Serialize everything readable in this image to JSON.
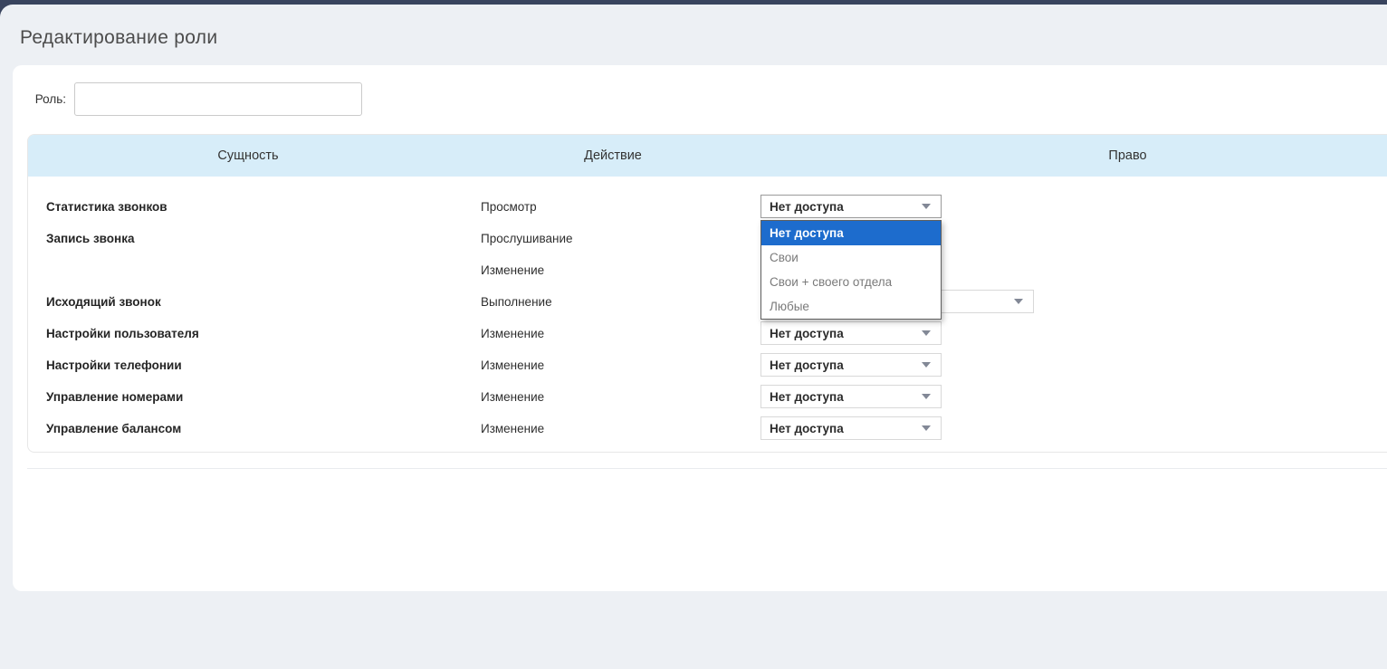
{
  "page": {
    "title": "Редактирование роли"
  },
  "form": {
    "role_label": "Роль:",
    "role_value": ""
  },
  "table": {
    "headers": [
      "Сущность",
      "Действие",
      "Право"
    ],
    "rows": [
      {
        "entity": "Статистика звонков",
        "action": "Просмотр",
        "right": "Нет доступа",
        "open": true,
        "wide": false
      },
      {
        "entity": "Запись звонка",
        "action": "Прослушивание",
        "right": null,
        "open": false,
        "wide": false
      },
      {
        "entity": "",
        "action": "Изменение",
        "right": null,
        "open": false,
        "wide": false
      },
      {
        "entity": "Исходящий звонок",
        "action": "Выполнение",
        "right": "",
        "open": false,
        "wide": true
      },
      {
        "entity": "Настройки пользователя",
        "action": "Изменение",
        "right": "Нет доступа",
        "open": false,
        "wide": false
      },
      {
        "entity": "Настройки телефонии",
        "action": "Изменение",
        "right": "Нет доступа",
        "open": false,
        "wide": false
      },
      {
        "entity": "Управление номерами",
        "action": "Изменение",
        "right": "Нет доступа",
        "open": false,
        "wide": false
      },
      {
        "entity": "Управление балансом",
        "action": "Изменение",
        "right": "Нет доступа",
        "open": false,
        "wide": false
      }
    ]
  },
  "dropdown": {
    "options": [
      "Нет доступа",
      "Свои",
      "Свои + своего отдела",
      "Любые"
    ],
    "selected": "Нет доступа"
  },
  "colors": {
    "accent_selected": "#1d6ccd",
    "table_header_bg": "#d7edf9",
    "topbar": "#4e5d7d",
    "page_bg": "#edf0f4"
  }
}
